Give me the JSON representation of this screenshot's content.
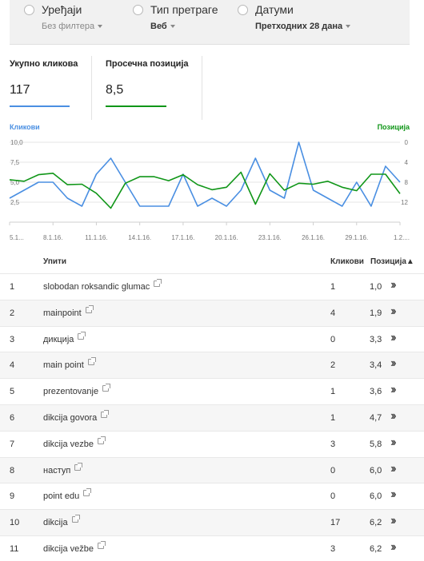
{
  "filters": [
    {
      "label": "Уређаји",
      "value": "Без филтера",
      "bold": false
    },
    {
      "label": "Тип претраге",
      "value": "Веб",
      "bold": true
    },
    {
      "label": "Датуми",
      "value": "Претходних 28 дана",
      "bold": true
    }
  ],
  "metrics": [
    {
      "label": "Укупно кликова",
      "value": "117",
      "color": "#4a8fe2"
    },
    {
      "label": "Просечна позиција",
      "value": "8,5",
      "color": "#109618"
    }
  ],
  "chart_data": {
    "type": "line",
    "left_axis_label": "Кликови",
    "right_axis_label": "Позиција",
    "left_ticks": [
      "10,0",
      "7,5",
      "5,0",
      "2,5"
    ],
    "right_ticks": [
      "0",
      "4",
      "8",
      "12"
    ],
    "ylim_left": [
      0,
      10
    ],
    "ylim_right_inverted": [
      0,
      16
    ],
    "x_ticks": [
      "5.1...",
      "8.1.16.",
      "11.1.16.",
      "14.1.16.",
      "17.1.16.",
      "20.1.16.",
      "23.1.16.",
      "26.1.16.",
      "29.1.16.",
      "1.2...."
    ],
    "x_tick_days": [
      0,
      3,
      6,
      9,
      12,
      15,
      18,
      21,
      24,
      27
    ],
    "series": [
      {
        "name": "Кликови",
        "color": "#4a8fe2",
        "axis": "left",
        "values": [
          3,
          4,
          5,
          5,
          3,
          2,
          6,
          8,
          5,
          2,
          2,
          2,
          6,
          2,
          3,
          2,
          4,
          8,
          4,
          3,
          10,
          4,
          3,
          2,
          5,
          2,
          7,
          5
        ]
      },
      {
        "name": "Позиција",
        "color": "#109618",
        "axis": "right",
        "values": [
          7.5,
          7.8,
          6.5,
          6.2,
          8.5,
          8.4,
          10.2,
          13.2,
          8.2,
          6.9,
          6.9,
          7.7,
          6.5,
          8.5,
          9.5,
          9.0,
          6.0,
          12.4,
          6.3,
          9.6,
          8.2,
          8.4,
          7.8,
          9.0,
          9.7,
          6.4,
          6.4,
          10.3
        ]
      }
    ]
  },
  "table": {
    "headers": {
      "query": "Упити",
      "clicks": "Кликови",
      "position": "Позиција▲"
    },
    "rows": [
      {
        "rank": "1",
        "query": "slobodan roksandic glumac",
        "clicks": "1",
        "position": "1,0"
      },
      {
        "rank": "2",
        "query": "mainpoint",
        "clicks": "4",
        "position": "1,9"
      },
      {
        "rank": "3",
        "query": "дикција",
        "clicks": "0",
        "position": "3,3"
      },
      {
        "rank": "4",
        "query": "main point",
        "clicks": "2",
        "position": "3,4"
      },
      {
        "rank": "5",
        "query": "prezentovanje",
        "clicks": "1",
        "position": "3,6"
      },
      {
        "rank": "6",
        "query": "dikcija govora",
        "clicks": "1",
        "position": "4,7"
      },
      {
        "rank": "7",
        "query": "dikcija vezbe",
        "clicks": "3",
        "position": "5,8"
      },
      {
        "rank": "8",
        "query": "наступ",
        "clicks": "0",
        "position": "6,0"
      },
      {
        "rank": "9",
        "query": "point edu",
        "clicks": "0",
        "position": "6,0"
      },
      {
        "rank": "10",
        "query": "dikcija",
        "clicks": "17",
        "position": "6,2"
      },
      {
        "rank": "11",
        "query": "dikcija vežbe",
        "clicks": "3",
        "position": "6,2"
      }
    ]
  }
}
